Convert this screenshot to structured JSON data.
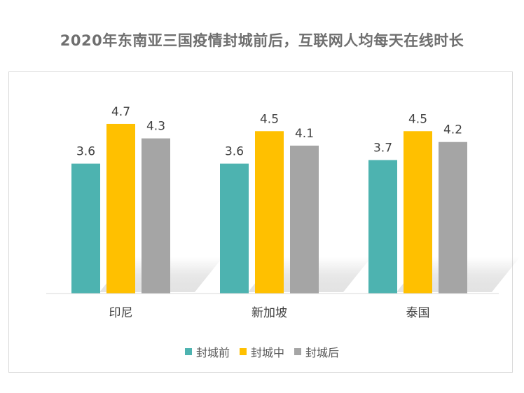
{
  "title": "2020年东南亚三国疫情封城前后，互联网人均每天在线时长",
  "chart_data": {
    "type": "bar",
    "title": "2020年东南亚三国疫情封城前后，互联网人均每天在线时长",
    "categories": [
      "印尼",
      "新加坡",
      "泰国"
    ],
    "series": [
      {
        "name": "封城前",
        "values": [
          3.6,
          3.6,
          3.7
        ],
        "color": "#4db3b0"
      },
      {
        "name": "封城中",
        "values": [
          4.7,
          4.5,
          4.5
        ],
        "color": "#ffc000"
      },
      {
        "name": "封城后",
        "values": [
          4.3,
          4.1,
          4.2
        ],
        "color": "#a5a5a5"
      }
    ],
    "ylim": [
      0,
      5.5
    ],
    "grid": false,
    "legend": "bottom",
    "xlabel": "",
    "ylabel": ""
  }
}
